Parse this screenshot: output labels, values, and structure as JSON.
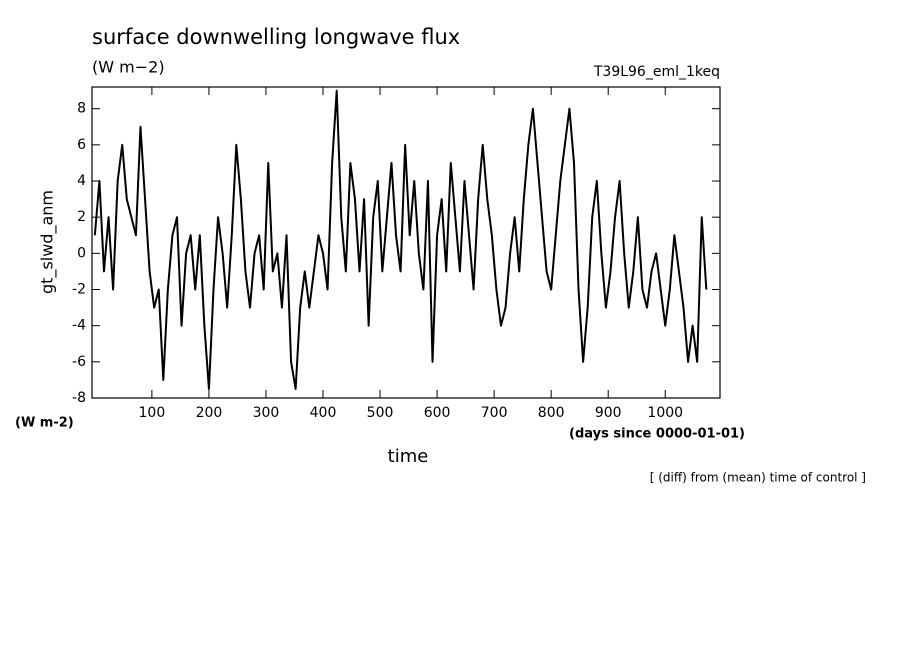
{
  "chart_data": {
    "type": "line",
    "title": "surface downwelling longwave flux",
    "units": "(W m−2)",
    "experiment": "T39L96_eml_1keq",
    "y_label": "gt_slwd_anm",
    "y_units": "(W m-2)",
    "x_units": "(days since 0000-01-01)",
    "x_label": "time",
    "note": "[ (diff) from (mean) time of control ]",
    "x": [
      0,
      8,
      16,
      24,
      32,
      40,
      48,
      56,
      64,
      72,
      80,
      88,
      96,
      104,
      112,
      120,
      128,
      136,
      144,
      152,
      160,
      168,
      176,
      184,
      192,
      200,
      208,
      216,
      224,
      232,
      240,
      248,
      256,
      264,
      272,
      280,
      288,
      296,
      304,
      312,
      320,
      328,
      336,
      344,
      352,
      360,
      368,
      376,
      384,
      392,
      400,
      408,
      416,
      424,
      432,
      440,
      448,
      456,
      464,
      472,
      480,
      488,
      496,
      504,
      512,
      520,
      528,
      536,
      544,
      552,
      560,
      568,
      576,
      584,
      592,
      600,
      608,
      616,
      624,
      632,
      640,
      648,
      656,
      664,
      672,
      680,
      688,
      696,
      704,
      712,
      720,
      728,
      736,
      744,
      752,
      760,
      768,
      776,
      784,
      792,
      800,
      808,
      816,
      824,
      832,
      840,
      848,
      856,
      864,
      872,
      880,
      888,
      896,
      904,
      912,
      920,
      928,
      936,
      944,
      952,
      960,
      968,
      976,
      984,
      992,
      1000,
      1008,
      1016,
      1024,
      1032,
      1040,
      1048,
      1056,
      1064,
      1072
    ],
    "series": [
      {
        "color": "#000000",
        "values": [
          1,
          4,
          -1,
          2,
          -2,
          4,
          6,
          3,
          2,
          1,
          7,
          3,
          -1,
          -3,
          -2,
          -7,
          -2,
          1,
          2,
          -4,
          0,
          1,
          -2,
          1,
          -4,
          -7.5,
          -2,
          2,
          0,
          -3,
          1,
          6,
          3,
          -1,
          -3,
          0,
          1,
          -2,
          5,
          -1,
          0,
          -3,
          1,
          -6,
          -7.5,
          -3,
          -1,
          -3,
          -1,
          1,
          0,
          -2,
          5,
          9,
          2,
          -1,
          5,
          3,
          -1,
          3,
          -4,
          2,
          4,
          -1,
          2,
          5,
          1,
          -1,
          6,
          1,
          4,
          0,
          -2,
          4,
          -6,
          1,
          3,
          -1,
          5,
          2,
          -1,
          4,
          1,
          -2,
          3,
          6,
          3,
          1,
          -2,
          -4,
          -3,
          0,
          2,
          -1,
          3,
          6,
          8,
          5,
          2,
          -1,
          -2,
          1,
          4,
          6,
          8,
          5,
          -2,
          -6,
          -3,
          2,
          4,
          0,
          -3,
          -1,
          2,
          4,
          0,
          -3,
          -1,
          2,
          -2,
          -3,
          -1,
          0,
          -2,
          -4,
          -2,
          1,
          -1,
          -3,
          -6,
          -4,
          -6,
          2,
          -2
        ]
      }
    ],
    "xlim": [
      -5,
      1096
    ],
    "ylim": [
      -8,
      9.2
    ],
    "xticks": [
      100,
      200,
      300,
      400,
      500,
      600,
      700,
      800,
      900,
      1000
    ],
    "yticks": [
      -8,
      -6,
      -4,
      -2,
      0,
      2,
      4,
      6,
      8
    ]
  }
}
